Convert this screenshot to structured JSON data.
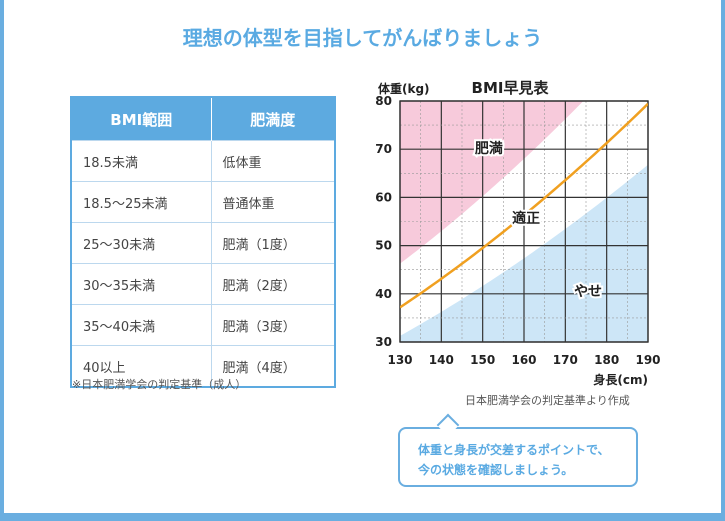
{
  "title": "理想の体型を目指してがんばりましょう",
  "table": {
    "headers": [
      "BMI範囲",
      "肥満度"
    ],
    "rows": [
      [
        "18.5未満",
        "低体重"
      ],
      [
        "18.5〜25未満",
        "普通体重"
      ],
      [
        "25〜30未満",
        "肥満（1度）"
      ],
      [
        "30〜35未満",
        "肥満（2度）"
      ],
      [
        "35〜40未満",
        "肥満（3度）"
      ],
      [
        "40以上",
        "肥満（4度）"
      ]
    ],
    "note": "※日本肥満学会の判定基準（成人）"
  },
  "chart_data": {
    "type": "area",
    "title": "BMI早見表",
    "xlabel": "身長(cm)",
    "ylabel": "体重(kg)",
    "xlim": [
      130,
      190
    ],
    "ylim": [
      30,
      80
    ],
    "x_ticks": [
      130,
      140,
      150,
      160,
      170,
      180,
      190
    ],
    "y_ticks": [
      30,
      40,
      50,
      60,
      70,
      80
    ],
    "grid": true,
    "series": [
      {
        "name": "適正",
        "color": "#f0a020",
        "bmi": 22
      }
    ],
    "regions": [
      {
        "label": "肥満",
        "color": "#f7cadb",
        "bmi_min": 25
      },
      {
        "label": "やせ",
        "color": "#cde6f7",
        "bmi_max": 18.5
      }
    ]
  },
  "source_note": "日本肥満学会の判定基準より作成",
  "callout": [
    "体重と身長が交差するポイントで、",
    "今の状態を確認しましょう。"
  ],
  "colors": {
    "accent": "#5aaae2",
    "obese": "#f7cadb",
    "thin": "#cde6f7",
    "line": "#f0a020"
  }
}
